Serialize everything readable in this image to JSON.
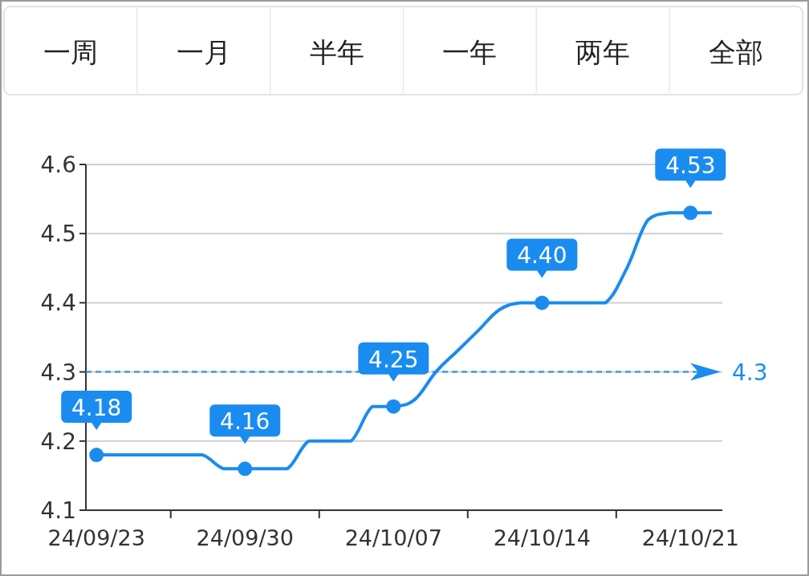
{
  "chart_data": [
    {
      "type": "other",
      "annotations": [
        "一周",
        "一月",
        "半年",
        "一年",
        "两年",
        "全部"
      ]
    },
    {
      "type": "line",
      "categories": [
        "24/09/23",
        null,
        null,
        null,
        null,
        null,
        null,
        "24/09/30",
        null,
        null,
        null,
        null,
        null,
        null,
        "24/10/07",
        null,
        null,
        null,
        null,
        null,
        null,
        "24/10/14",
        null,
        null,
        null,
        null,
        null,
        null,
        "24/10/21",
        null
      ],
      "series": [
        {
          "color": "#1a8cf0",
          "values": [
            4.18,
            4.18,
            4.18,
            4.18,
            4.18,
            4.18,
            4.16,
            4.16,
            4.16,
            4.16,
            4.2,
            4.2,
            4.2,
            4.25,
            4.25,
            4.26,
            4.3,
            4.33,
            4.36,
            4.39,
            4.4,
            4.4,
            4.4,
            4.4,
            4.4,
            4.45,
            4.52,
            4.53,
            4.53,
            4.53
          ],
          "value_labels": [
            "4.18",
            null,
            null,
            null,
            null,
            null,
            null,
            "4.16",
            null,
            null,
            null,
            null,
            null,
            null,
            "4.25",
            null,
            null,
            null,
            null,
            null,
            null,
            "4.40",
            null,
            null,
            null,
            null,
            null,
            null,
            "4.53",
            null
          ]
        }
      ],
      "ylim": [
        4.1,
        4.6
      ],
      "yticks": [
        4.1,
        4.2,
        4.3,
        4.4,
        4.5,
        4.6
      ],
      "grid": "y",
      "line_style": "solid",
      "ref_lines": [
        {
          "axis": "y",
          "value": 4.3,
          "label": "4.3",
          "color": "#1a8cf0",
          "line_style": "dashed"
        }
      ]
    }
  ]
}
